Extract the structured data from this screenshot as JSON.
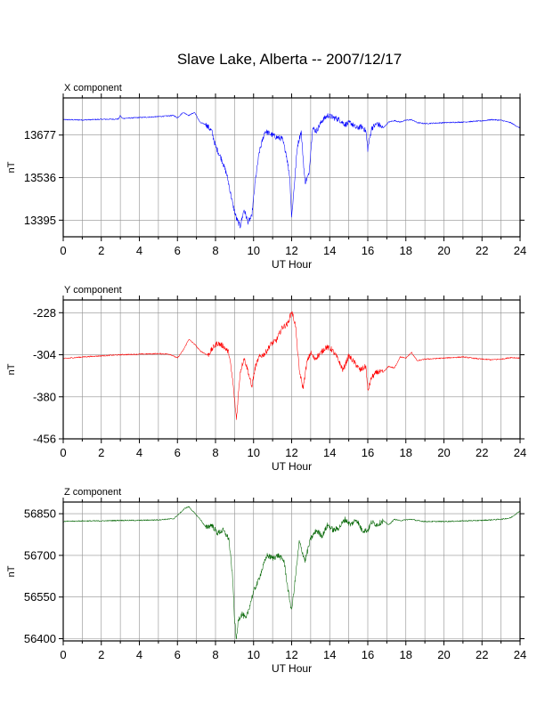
{
  "title": "Slave Lake, Alberta -- 2007/12/17",
  "chart_data": [
    {
      "type": "line",
      "panel_title": "X component",
      "xlabel": "UT Hour",
      "ylabel": "nT",
      "xlim": [
        0,
        24
      ],
      "ylim": [
        13340,
        13800
      ],
      "x_ticks": [
        0,
        2,
        4,
        6,
        8,
        10,
        12,
        14,
        16,
        18,
        20,
        22,
        24
      ],
      "y_ticks": [
        13395,
        13536,
        13677
      ],
      "grid": true,
      "color": "#0000ff",
      "x": [
        0,
        1,
        2,
        2.9,
        3.0,
        3.1,
        4,
        5,
        5.8,
        6.0,
        6.3,
        6.6,
        6.9,
        7.2,
        7.5,
        7.8,
        8.0,
        8.3,
        8.6,
        8.9,
        9.1,
        9.3,
        9.5,
        9.7,
        9.9,
        10.1,
        10.3,
        10.6,
        10.9,
        11.2,
        11.5,
        11.7,
        11.9,
        12.0,
        12.1,
        12.3,
        12.5,
        12.7,
        12.9,
        13.1,
        13.3,
        13.6,
        13.9,
        14.2,
        14.5,
        14.8,
        15.1,
        15.4,
        15.7,
        15.9,
        16.0,
        16.2,
        16.5,
        16.8,
        17.1,
        17.4,
        17.7,
        18.0,
        18.3,
        18.6,
        19,
        20,
        21,
        22,
        22.5,
        23,
        23.5,
        24
      ],
      "y": [
        13728,
        13727,
        13729,
        13730,
        13742,
        13732,
        13735,
        13738,
        13742,
        13734,
        13752,
        13742,
        13752,
        13718,
        13712,
        13690,
        13640,
        13600,
        13545,
        13450,
        13400,
        13375,
        13430,
        13390,
        13405,
        13530,
        13620,
        13690,
        13680,
        13670,
        13665,
        13620,
        13540,
        13405,
        13480,
        13640,
        13690,
        13520,
        13545,
        13700,
        13690,
        13725,
        13742,
        13735,
        13728,
        13712,
        13718,
        13700,
        13705,
        13690,
        13630,
        13700,
        13715,
        13700,
        13720,
        13725,
        13720,
        13726,
        13728,
        13718,
        13715,
        13718,
        13720,
        13724,
        13728,
        13726,
        13718,
        13700
      ]
    },
    {
      "type": "line",
      "panel_title": "Y component",
      "xlabel": "UT Hour",
      "ylabel": "nT",
      "xlim": [
        0,
        24
      ],
      "ylim": [
        -456,
        -205
      ],
      "x_ticks": [
        0,
        2,
        4,
        6,
        8,
        10,
        12,
        14,
        16,
        18,
        20,
        22,
        24
      ],
      "y_ticks": [
        -456,
        -380,
        -304,
        -228
      ],
      "grid": true,
      "color": "#ff0000",
      "x": [
        0,
        1,
        2,
        3,
        4,
        5,
        5.6,
        6.0,
        6.3,
        6.6,
        6.9,
        7.2,
        7.6,
        7.9,
        8.1,
        8.4,
        8.7,
        8.9,
        9.0,
        9.1,
        9.2,
        9.3,
        9.5,
        9.7,
        9.9,
        10.1,
        10.3,
        10.6,
        10.9,
        11.2,
        11.5,
        11.8,
        12.0,
        12.2,
        12.4,
        12.6,
        12.8,
        13.0,
        13.2,
        13.5,
        13.8,
        14.1,
        14.4,
        14.7,
        15.0,
        15.3,
        15.6,
        15.9,
        16.0,
        16.2,
        16.5,
        16.8,
        17.1,
        17.4,
        17.7,
        18.0,
        18.3,
        18.6,
        19,
        20,
        21,
        22,
        22.5,
        23,
        23.5,
        24
      ],
      "y": [
        -311,
        -308,
        -306,
        -304,
        -303,
        -302,
        -303,
        -310,
        -296,
        -276,
        -285,
        -297,
        -305,
        -290,
        -283,
        -288,
        -300,
        -350,
        -385,
        -420,
        -375,
        -335,
        -310,
        -332,
        -362,
        -325,
        -308,
        -302,
        -285,
        -278,
        -255,
        -248,
        -225,
        -250,
        -332,
        -365,
        -318,
        -300,
        -312,
        -302,
        -290,
        -294,
        -310,
        -332,
        -306,
        -318,
        -332,
        -325,
        -370,
        -345,
        -335,
        -336,
        -325,
        -328,
        -308,
        -310,
        -300,
        -315,
        -312,
        -310,
        -308,
        -312,
        -313,
        -312,
        -309,
        -310
      ]
    },
    {
      "type": "line",
      "panel_title": "Z component",
      "xlabel": "UT Hour",
      "ylabel": "nT",
      "xlim": [
        0,
        24
      ],
      "ylim": [
        56392,
        56892
      ],
      "x_ticks": [
        0,
        2,
        4,
        6,
        8,
        10,
        12,
        14,
        16,
        18,
        20,
        22,
        24
      ],
      "y_ticks": [
        56400,
        56550,
        56700,
        56850
      ],
      "grid": true,
      "color": "#006400",
      "x": [
        0,
        1,
        2,
        3,
        4,
        5,
        5.8,
        6.1,
        6.4,
        6.6,
        6.9,
        7.2,
        7.5,
        7.8,
        8.1,
        8.4,
        8.7,
        8.9,
        9.0,
        9.1,
        9.2,
        9.4,
        9.6,
        9.8,
        10.0,
        10.2,
        10.4,
        10.7,
        11.0,
        11.3,
        11.6,
        11.8,
        12.0,
        12.2,
        12.4,
        12.7,
        13.0,
        13.3,
        13.6,
        13.9,
        14.2,
        14.5,
        14.8,
        15.1,
        15.4,
        15.7,
        16.0,
        16.2,
        16.5,
        16.8,
        17.1,
        17.4,
        17.7,
        18.0,
        18.3,
        18.6,
        19,
        20,
        21,
        22,
        23,
        23.5,
        24
      ],
      "y": [
        56822,
        56824,
        56824,
        56826,
        56826,
        56828,
        56832,
        56850,
        56870,
        56875,
        56852,
        56830,
        56800,
        56810,
        56780,
        56790,
        56760,
        56620,
        56470,
        56395,
        56470,
        56490,
        56470,
        56520,
        56570,
        56600,
        56640,
        56700,
        56690,
        56700,
        56680,
        56580,
        56500,
        56620,
        56750,
        56680,
        56760,
        56790,
        56770,
        56810,
        56790,
        56800,
        56830,
        56810,
        56830,
        56790,
        56790,
        56820,
        56810,
        56825,
        56810,
        56830,
        56825,
        56828,
        56830,
        56825,
        56822,
        56822,
        56824,
        56826,
        56830,
        56835,
        56860
      ]
    }
  ]
}
